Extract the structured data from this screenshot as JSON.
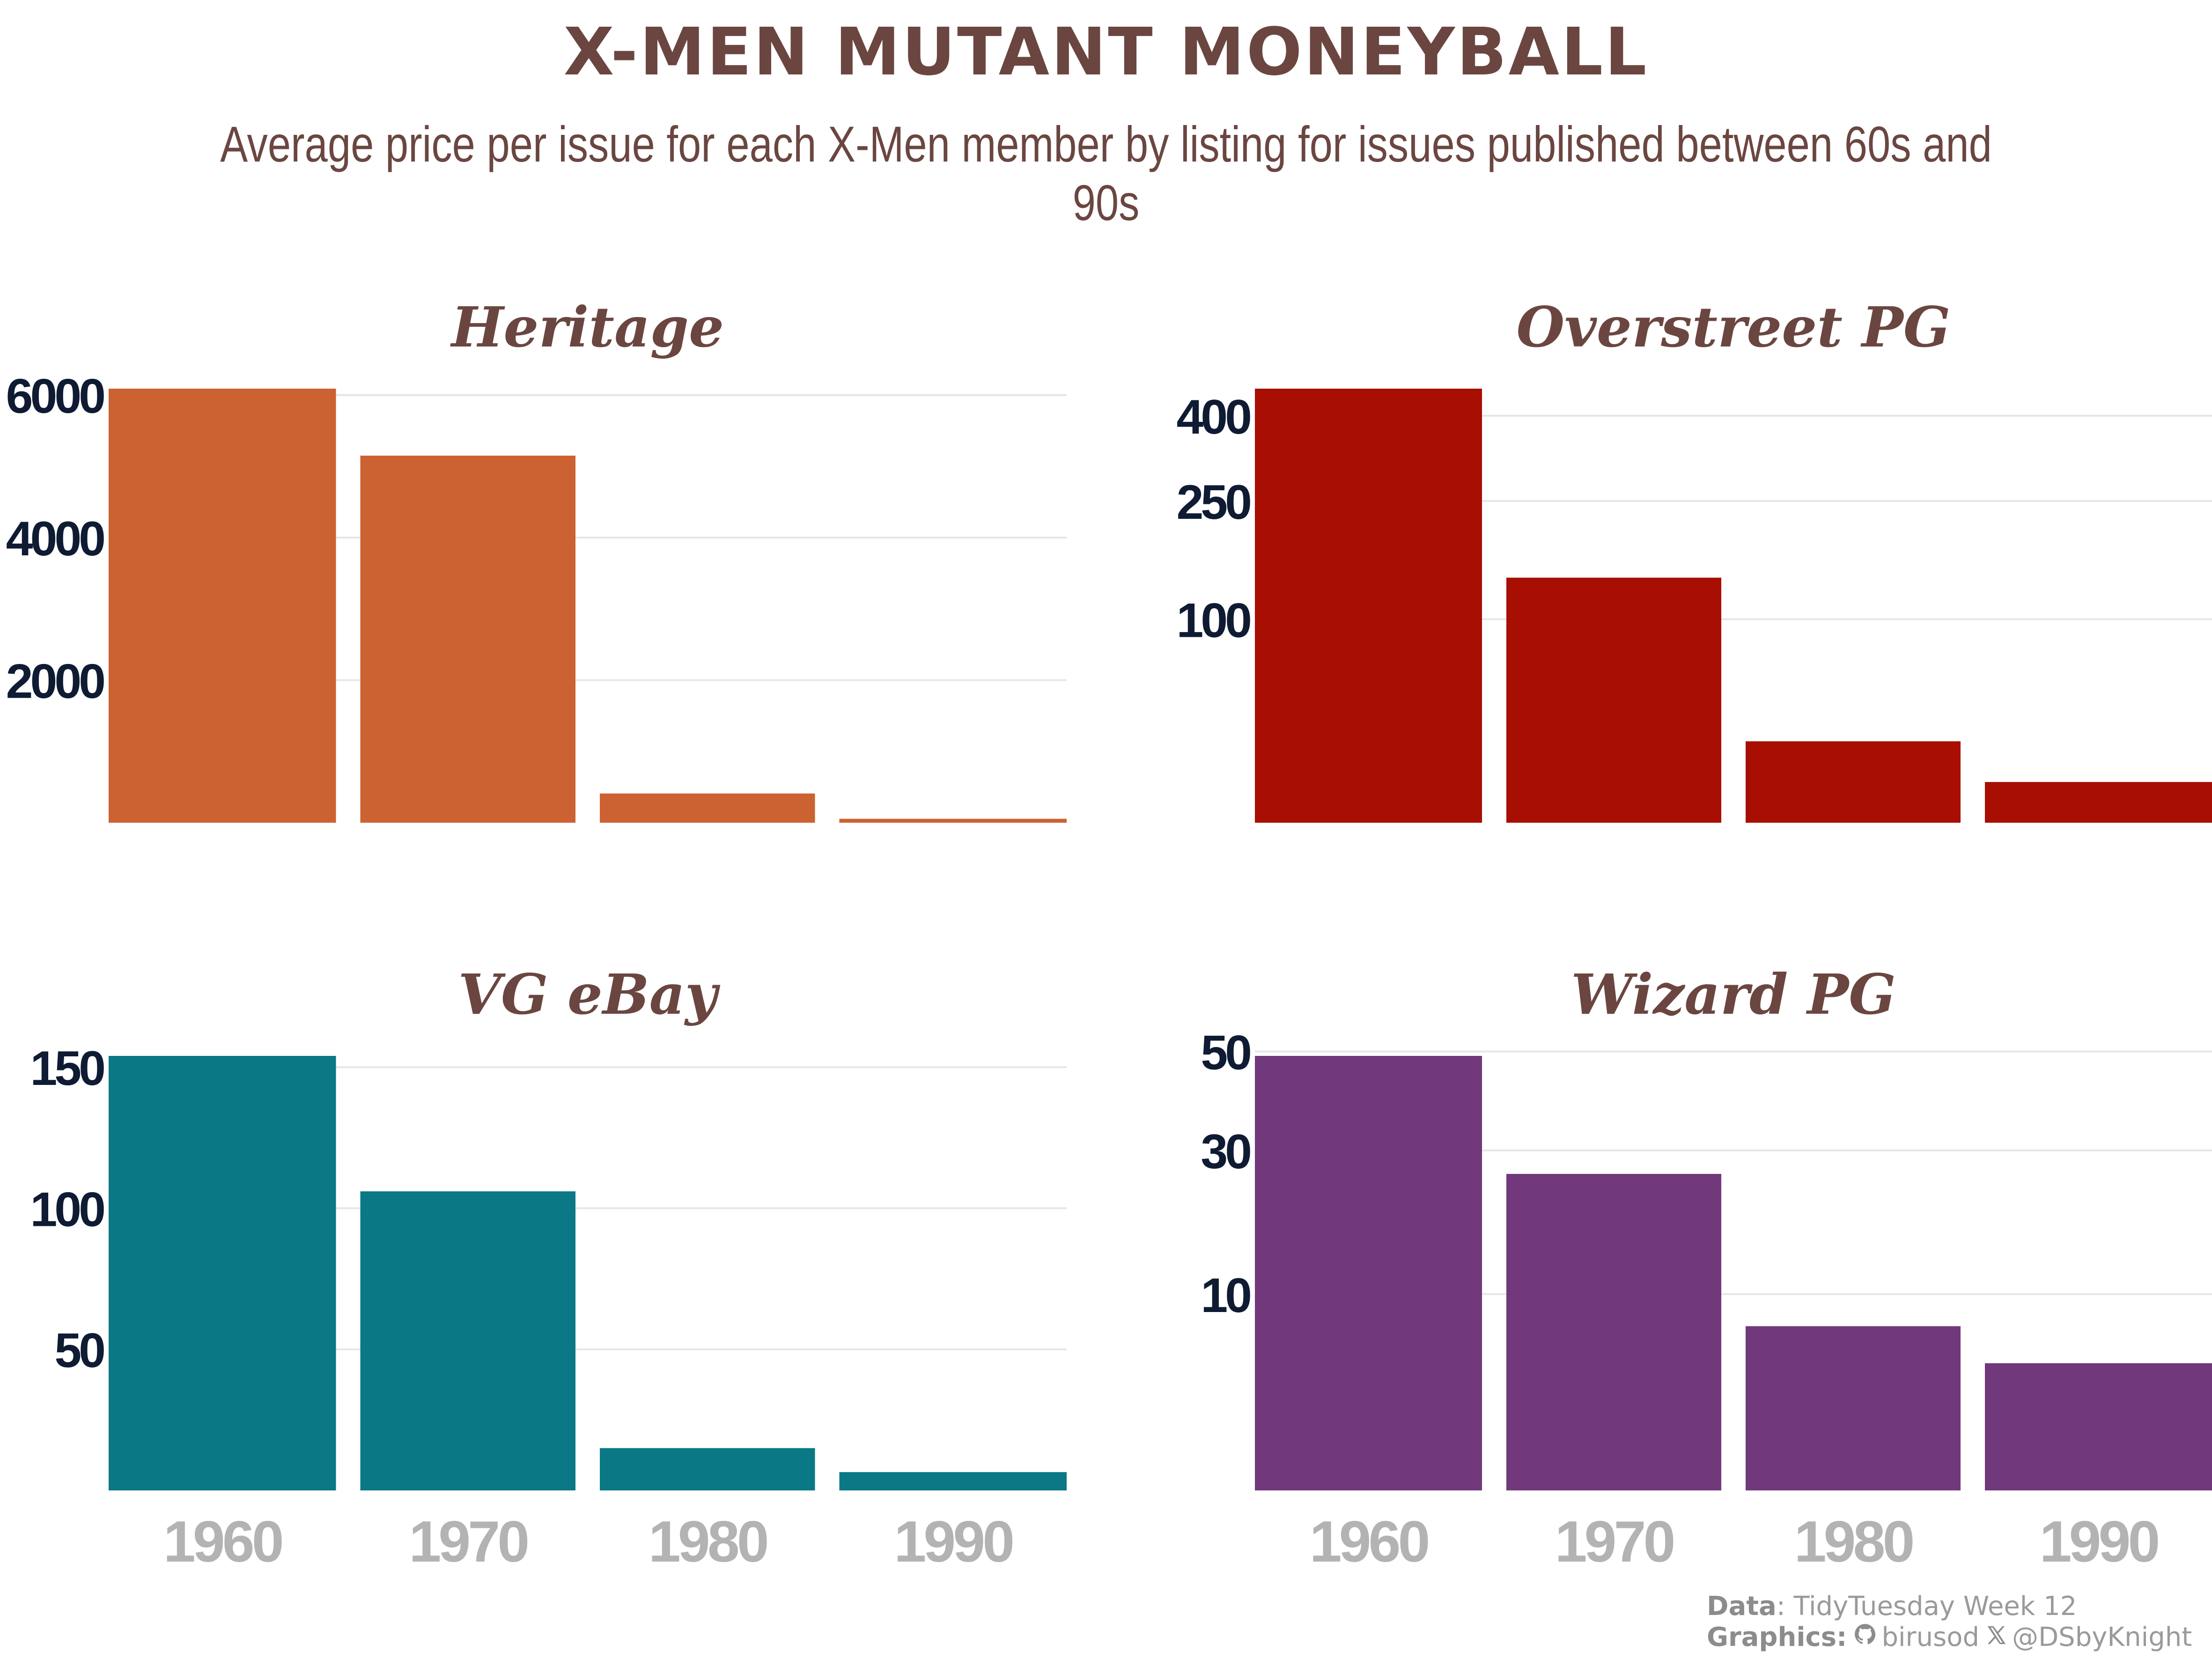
{
  "title": "X-MEN MUTANT MONEYBALL",
  "subtitle": "Average price per issue for each X-Men member by listing for issues published between 60s and 90s",
  "caption": {
    "data_label": "Data",
    "data_value": ": TidyTuesday Week 12",
    "graphics_label": "Graphics:",
    "github_icon": "github-icon",
    "github_handle": "birusod",
    "x_icon": "x-logo-icon",
    "x_handle": "@DSbyKnight"
  },
  "chart_data": [
    {
      "type": "bar",
      "title": "Heritage",
      "categories": [
        "1960",
        "1970",
        "1980",
        "1990"
      ],
      "values": [
        6090,
        5150,
        410,
        55
      ],
      "yticks": [
        2000,
        4000,
        6000
      ],
      "ylim": [
        0,
        6090
      ],
      "color": "#cc6231",
      "grid": true
    },
    {
      "type": "bar",
      "title": "Overstreet PG",
      "categories": [
        "1960",
        "1970",
        "1980",
        "1990"
      ],
      "values": [
        455,
        145,
        16,
        4
      ],
      "yticks": [
        100,
        250,
        400
      ],
      "ylim": [
        0,
        455
      ],
      "scale": "sqrt",
      "color": "#a80e02",
      "grid": true
    },
    {
      "type": "bar",
      "title": "VG eBay",
      "categories": [
        "1960",
        "1970",
        "1980",
        "1990"
      ],
      "values": [
        154,
        106,
        15,
        6.5
      ],
      "yticks": [
        50,
        100,
        150
      ],
      "ylim": [
        0,
        154
      ],
      "color": "#0a7885",
      "grid": true
    },
    {
      "type": "bar",
      "title": "Wizard PG",
      "categories": [
        "1960",
        "1970",
        "1980",
        "1990"
      ],
      "values": [
        49,
        26,
        7,
        4.2
      ],
      "yticks": [
        10,
        30,
        50
      ],
      "ylim": [
        0,
        49
      ],
      "scale": "sqrt",
      "color": "#71387b",
      "grid": true
    }
  ]
}
